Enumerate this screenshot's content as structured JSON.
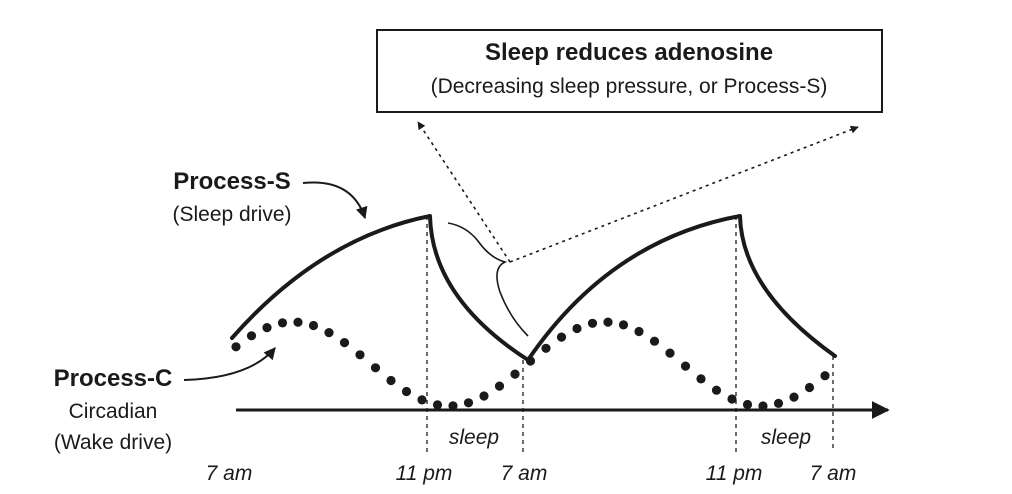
{
  "callout": {
    "title": "Sleep reduces adenosine",
    "subtitle": "(Decreasing sleep pressure, or Process-S)"
  },
  "process_s": {
    "title": "Process-S",
    "subtitle": "(Sleep drive)"
  },
  "process_c": {
    "title": "Process-C",
    "line1": "Circadian",
    "line2": "(Wake drive)"
  },
  "sleep_labels": [
    "sleep",
    "sleep"
  ],
  "time_labels": [
    "7 am",
    "11 pm",
    "7 am",
    "11 pm",
    "7 am"
  ],
  "colors": {
    "ink": "#1a1a1a",
    "background": "#ffffff"
  }
}
